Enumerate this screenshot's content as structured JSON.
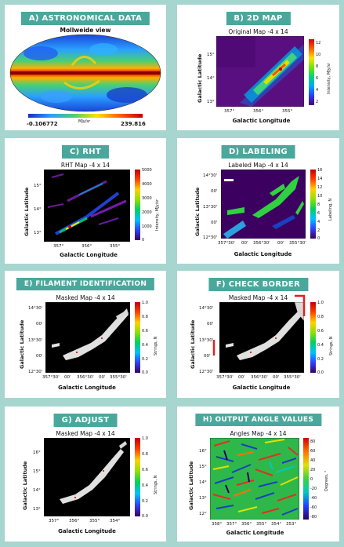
{
  "panels": {
    "a": {
      "header": "A) ASTRONOMICAL DATA",
      "title": "Mollweide view",
      "cb_min": "-0.106772",
      "cb_unit": "MJy/sr",
      "cb_max": "239.816"
    },
    "b": {
      "header": "B) 2D MAP",
      "title": "Original Map -4 x 14",
      "xlabel": "Galactic Longitude",
      "ylabel": "Galactic Latitude",
      "xticks": [
        "357°",
        "356°",
        "355°"
      ],
      "yticks": [
        "15°",
        "14°",
        "13°"
      ],
      "cbticks": [
        "12",
        "10",
        "8",
        "6",
        "4",
        "2"
      ],
      "cblabel": "Intensity, MJy/sr"
    },
    "c": {
      "header": "C) RHT",
      "title": "RHT Map -4 x 14",
      "xlabel": "Galactic Longitude",
      "ylabel": "Galactic Latitude",
      "xticks": [
        "357°",
        "356°",
        "355°"
      ],
      "yticks": [
        "15°",
        "14°",
        "13°"
      ],
      "cbticks": [
        "5000",
        "4000",
        "3000",
        "2000",
        "1000",
        "0"
      ],
      "cblabel": "Intensity, MJy/sr"
    },
    "d": {
      "header": "D) LABELING",
      "title": "Labeled Map -4 x 14",
      "xlabel": "Galactic Longitude",
      "ylabel": "Galactic Latitude",
      "xticks": [
        "357°30'",
        "00'",
        "356°30'",
        "00'",
        "355°30'"
      ],
      "yticks": [
        "14°30'",
        "00'",
        "13°30'",
        "00'",
        "12°30'"
      ],
      "cbticks": [
        "16",
        "14",
        "12",
        "10",
        "8",
        "6",
        "4",
        "2",
        "0"
      ],
      "cblabel": "Labeling, N"
    },
    "e": {
      "header": "E) FILAMENT IDENTIFICATION",
      "title": "Masked Map -4 x 14",
      "xlabel": "Galactic Longitude",
      "ylabel": "Galactic Latitude",
      "xticks": [
        "357°30'",
        "00'",
        "356°30'",
        "00'",
        "355°30'"
      ],
      "yticks": [
        "14°30'",
        "00'",
        "13°30'",
        "00'",
        "12°30'"
      ],
      "cbticks": [
        "1.0",
        "0.8",
        "0.6",
        "0.4",
        "0.2",
        "0.0"
      ],
      "cblabel": "Strings, N"
    },
    "f": {
      "header": "F) CHECK BORDER",
      "title": "Masked Map -4 x 14",
      "xlabel": "Galactic Longitude",
      "ylabel": "Galactic Latitude",
      "xticks": [
        "357°30'",
        "00'",
        "356°30'",
        "00'",
        "355°30'"
      ],
      "yticks": [
        "14°30'",
        "00'",
        "13°30'",
        "00'",
        "12°30'"
      ],
      "cbticks": [
        "1.0",
        "0.8",
        "0.6",
        "0.4",
        "0.2",
        "0.0"
      ],
      "cblabel": "Strings, N"
    },
    "g": {
      "header": "G) ADJUST",
      "title": "Masked Map -4 x 14",
      "xlabel": "Galactic Longitude",
      "ylabel": "Galactic Latitude",
      "xticks": [
        "357°",
        "356°",
        "355°",
        "354°"
      ],
      "yticks": [
        "16°",
        "15°",
        "14°",
        "13°"
      ],
      "cbticks": [
        "1.0",
        "0.8",
        "0.6",
        "0.4",
        "0.2",
        "0.0"
      ],
      "cblabel": "Strings, N"
    },
    "h": {
      "header": "H) OUTPUT ANGLE VALUES",
      "title": "Angles Map -4 x 14",
      "xlabel": "Galactic Longitude",
      "ylabel": "Galactic Latitude",
      "xticks": [
        "358°",
        "357°",
        "356°",
        "355°",
        "354°",
        "353°"
      ],
      "yticks": [
        "16°",
        "15°",
        "14°",
        "13°",
        "12°"
      ],
      "cbticks": [
        "80",
        "60",
        "40",
        "20",
        "0",
        "-20",
        "-40",
        "-60",
        "-80"
      ],
      "cblabel": "Degrees, °"
    }
  }
}
